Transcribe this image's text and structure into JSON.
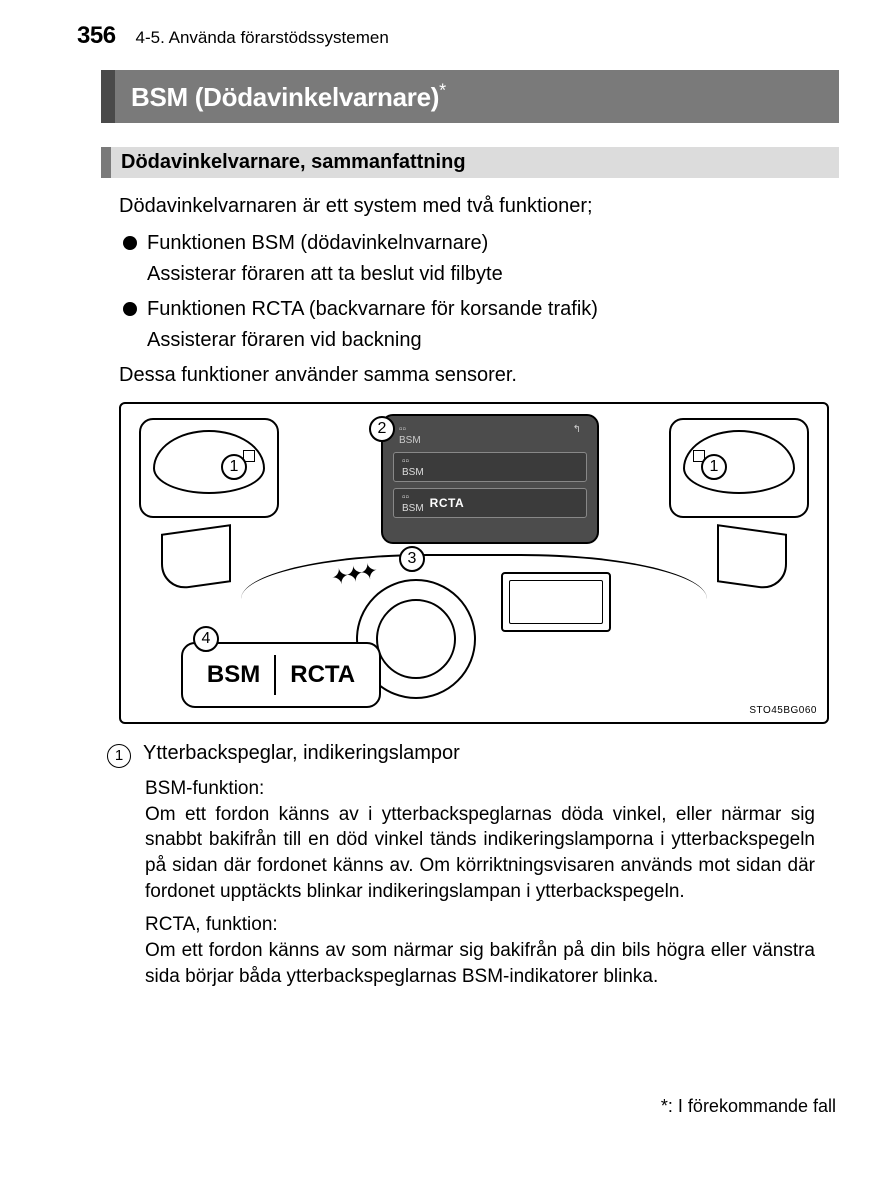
{
  "page_number": "356",
  "chapter": "4-5. Använda förarstödssystemen",
  "title": "BSM (Dödavinkelvarnare)",
  "title_asterisk": "*",
  "subsection": "Dödavinkelvarnare, sammanfattning",
  "intro": "Dödavinkelvarnaren är ett system med två funktioner;",
  "bullets": [
    {
      "head": "Funktionen BSM (dödavinkelnvarnare)",
      "sub": "Assisterar föraren att ta beslut vid filbyte"
    },
    {
      "head": "Funktionen RCTA (backvarnare för korsande trafik)",
      "sub": "Assisterar föraren vid backning"
    }
  ],
  "after_bullets": "Dessa funktioner använder samma sensorer.",
  "illustration": {
    "callouts": {
      "n1": "1",
      "n2": "2",
      "n3": "3",
      "n4": "4"
    },
    "screen_label_rcta": "RCTA",
    "bsm_label": "BSM",
    "rcta_label": "RCTA",
    "image_code": "STO45BG060"
  },
  "item1": {
    "num": "1",
    "title": "Ytterbackspeglar, indikeringslampor",
    "bsm_label": "BSM-funktion:",
    "bsm_text": "Om ett fordon känns av i ytterbackspeglarnas döda vinkel, eller närmar sig snabbt bakifrån till en död vinkel tänds indikeringslamporna i ytterbackspegeln på sidan där fordonet känns av. Om körriktningsvisaren används mot sidan där fordonet upptäckts blinkar indikeringslampan i ytterbackspegeln.",
    "rcta_label": "RCTA, funktion:",
    "rcta_text": "Om ett fordon känns av som närmar sig bakifrån på din bils högra eller vänstra sida börjar båda ytterbackspeglarnas BSM-indikatorer blinka."
  },
  "footnote": ": I förekommande fall",
  "footnote_ast": "*",
  "colors": {
    "title_bar_bg": "#7a7a7a",
    "title_bar_border": "#4a4a4a",
    "subsection_bg": "#dcdcdc",
    "subsection_border": "#7a7a7a",
    "screen_bg": "#4c4c4c"
  }
}
